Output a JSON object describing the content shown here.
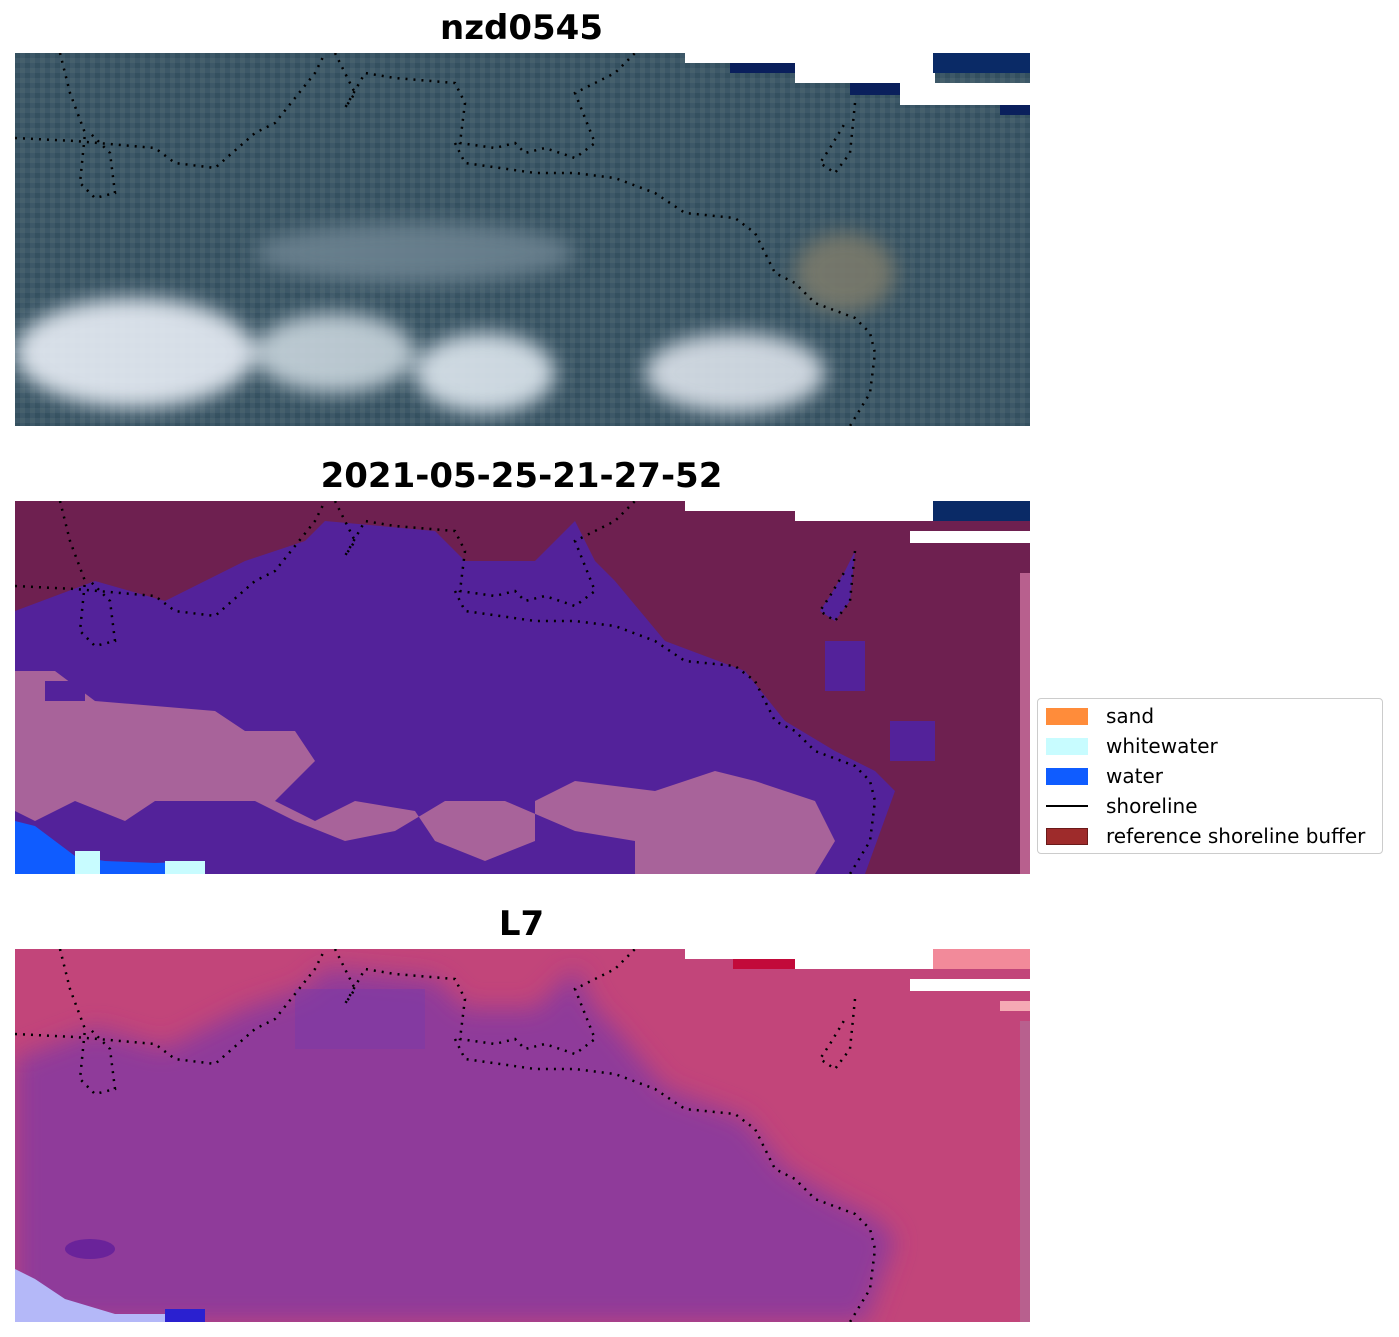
{
  "panels": [
    {
      "title": "nzd0545"
    },
    {
      "title": "2021-05-25-21-27-52"
    },
    {
      "title": "L7"
    }
  ],
  "legend": {
    "items": [
      {
        "label": "sand",
        "color": "#ff8c3a",
        "kind": "patch"
      },
      {
        "label": "whitewater",
        "color": "#c8fcff",
        "kind": "patch"
      },
      {
        "label": "water",
        "color": "#0f5cff",
        "kind": "patch"
      },
      {
        "label": "shoreline",
        "color": "#000000",
        "kind": "line"
      },
      {
        "label": "reference shoreline buffer",
        "color": "#9e2b2b",
        "kind": "patch"
      }
    ]
  },
  "colors": {
    "rgb_dark_vegetation": "#3c5a6a",
    "rgb_surf": "#dfe6ee",
    "classified_water": "#53229a",
    "classified_land": "#6e2050",
    "classified_surf": "#a8639a",
    "false_color_land": "#c0406a",
    "false_color_water": "#8f3a9a",
    "nodata_blue": "#0a1f5c"
  }
}
